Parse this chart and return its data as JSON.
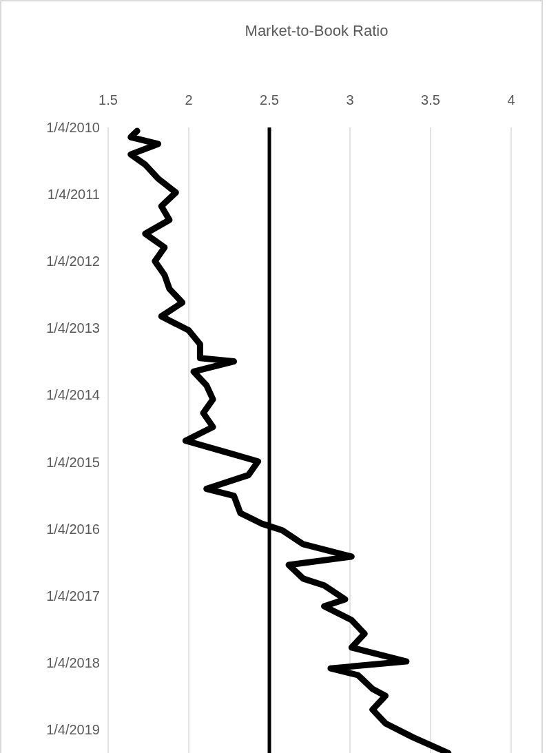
{
  "chart_data": {
    "type": "line",
    "title": "Market-to-Book Ratio",
    "x": [
      "2010-01-23",
      "2010-02-26",
      "2010-04-04",
      "2010-05-31",
      "2010-07-26",
      "2010-10-10",
      "2010-12-25",
      "2011-03-10",
      "2011-05-24",
      "2011-08-07",
      "2011-10-21",
      "2012-01-04",
      "2012-03-20",
      "2012-06-03",
      "2012-08-17",
      "2012-10-31",
      "2013-01-16",
      "2013-04-01",
      "2013-06-16",
      "2013-07-04",
      "2013-08-29",
      "2013-11-12",
      "2014-01-27",
      "2014-04-12",
      "2014-06-27",
      "2014-09-10",
      "2014-11-24",
      "2015-01-01",
      "2015-03-17",
      "2015-05-31",
      "2015-07-08",
      "2015-10-10",
      "2015-12-06",
      "2016-01-12",
      "2016-03-28",
      "2016-06-04",
      "2016-07-19",
      "2016-10-02",
      "2016-11-08",
      "2017-01-23",
      "2017-03-02",
      "2017-05-16",
      "2017-07-30",
      "2017-10-13",
      "2017-12-28",
      "2018-02-04",
      "2018-03-13",
      "2018-05-27",
      "2018-07-04",
      "2018-09-17",
      "2018-12-01",
      "2019-02-15",
      "2019-05-12"
    ],
    "series": [
      {
        "color": "#000000",
        "values": [
          1.68,
          1.64,
          1.81,
          1.64,
          1.73,
          1.81,
          1.92,
          1.83,
          1.88,
          1.73,
          1.85,
          1.79,
          1.85,
          1.88,
          1.96,
          1.83,
          2.0,
          2.07,
          2.07,
          2.28,
          2.03,
          2.11,
          2.15,
          2.09,
          2.15,
          1.98,
          2.28,
          2.43,
          2.37,
          2.11,
          2.28,
          2.32,
          2.45,
          2.58,
          2.71,
          3.01,
          2.62,
          2.71,
          2.84,
          2.97,
          2.84,
          3.01,
          3.09,
          3.01,
          3.35,
          2.88,
          3.05,
          3.14,
          3.22,
          3.14,
          3.22,
          3.39,
          3.61
        ]
      }
    ],
    "orientation": "horizontal",
    "ylim": [
      "2019-05-12",
      "2010-01-04"
    ],
    "yticks": [
      {
        "value": "2010-01-04",
        "label": "1/4/2010"
      },
      {
        "value": "2011-01-04",
        "label": "1/4/2011"
      },
      {
        "value": "2012-01-04",
        "label": "1/4/2012"
      },
      {
        "value": "2013-01-04",
        "label": "1/4/2013"
      },
      {
        "value": "2014-01-04",
        "label": "1/4/2014"
      },
      {
        "value": "2015-01-04",
        "label": "1/4/2015"
      },
      {
        "value": "2016-01-04",
        "label": "1/4/2016"
      },
      {
        "value": "2017-01-04",
        "label": "1/4/2017"
      },
      {
        "value": "2018-01-04",
        "label": "1/4/2018"
      },
      {
        "value": "2019-01-04",
        "label": "1/4/2019"
      }
    ],
    "xlim": [
      1.5,
      4
    ],
    "xticks": [
      1.5,
      2,
      2.5,
      3,
      3.5,
      4
    ],
    "grid": "x",
    "ref_lines": [
      {
        "axis": "x",
        "value": 2.5,
        "color": "#000000"
      }
    ]
  }
}
